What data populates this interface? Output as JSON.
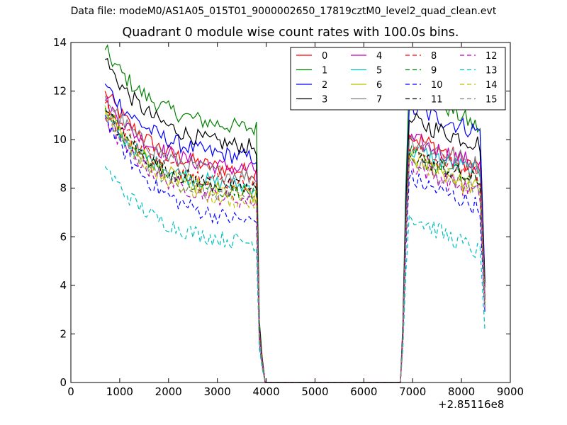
{
  "suptitle": "Data file: modeM0/AS1A05_015T01_9000002650_17819cztM0_level2_quad_clean.evt",
  "chart_data": {
    "type": "line",
    "title": "Quadrant 0 module wise count rates with 100.0s bins.",
    "xlabel": "",
    "ylabel": "",
    "x_offset_label": "+2.85116e8",
    "xlim": [
      0,
      9000
    ],
    "ylim": [
      0,
      14
    ],
    "xticks": [
      0,
      1000,
      2000,
      3000,
      4000,
      5000,
      6000,
      7000,
      8000,
      9000
    ],
    "yticks": [
      0,
      2,
      4,
      6,
      8,
      10,
      12,
      14
    ],
    "grid": false,
    "legend_location": "upper right",
    "legend_columns": 4,
    "segments": [
      {
        "x_start": 700,
        "x_end": 3800,
        "drop_x": [
          3860,
          3920,
          3980
        ],
        "drop_factor": [
          0.25,
          0.1,
          0
        ]
      },
      {
        "rise_x": [
          6750,
          6800,
          6860
        ],
        "rise_factor": [
          0,
          0.2,
          0.65
        ],
        "x_start": 6930,
        "x_end": 8400,
        "drop_x": [
          8480
        ],
        "drop_factor": [
          0.4
        ]
      }
    ],
    "zero_range": [
      3980,
      6750
    ],
    "series": [
      {
        "name": "0",
        "color": "#ff0000",
        "dash": "solid",
        "seg1_start": 12.0,
        "seg1_end": 8.5,
        "seg2_start": 10.2,
        "seg2_end": 8.8
      },
      {
        "name": "1",
        "color": "#008000",
        "dash": "solid",
        "seg1_start": 13.7,
        "seg1_end": 10.3,
        "seg2_start": 12.4,
        "seg2_end": 10.4
      },
      {
        "name": "2",
        "color": "#0000ff",
        "dash": "solid",
        "seg1_start": 12.3,
        "seg1_end": 9.1,
        "seg2_start": 11.3,
        "seg2_end": 10.3
      },
      {
        "name": "3",
        "color": "#000000",
        "dash": "solid",
        "seg1_start": 13.3,
        "seg1_end": 9.5,
        "seg2_start": 10.8,
        "seg2_end": 9.8
      },
      {
        "name": "4",
        "color": "#bf00bf",
        "dash": "solid",
        "seg1_start": 11.6,
        "seg1_end": 8.6,
        "seg2_start": 10.0,
        "seg2_end": 8.9
      },
      {
        "name": "5",
        "color": "#00bfbf",
        "dash": "solid",
        "seg1_start": 11.0,
        "seg1_end": 7.9,
        "seg2_start": 9.6,
        "seg2_end": 8.6
      },
      {
        "name": "6",
        "color": "#bfbf00",
        "dash": "solid",
        "seg1_start": 11.4,
        "seg1_end": 7.5,
        "seg2_start": 9.3,
        "seg2_end": 7.9
      },
      {
        "name": "7",
        "color": "#808080",
        "dash": "solid",
        "seg1_start": 11.8,
        "seg1_end": 8.3,
        "seg2_start": 10.0,
        "seg2_end": 8.9
      },
      {
        "name": "8",
        "color": "#ff0000",
        "dash": "dashed",
        "seg1_start": 11.5,
        "seg1_end": 8.0,
        "seg2_start": 9.6,
        "seg2_end": 8.5
      },
      {
        "name": "9",
        "color": "#008000",
        "dash": "dashed",
        "seg1_start": 11.3,
        "seg1_end": 7.6,
        "seg2_start": 9.4,
        "seg2_end": 8.2
      },
      {
        "name": "10",
        "color": "#0000ff",
        "dash": "dashed",
        "seg1_start": 11.0,
        "seg1_end": 6.4,
        "seg2_start": 8.4,
        "seg2_end": 7.2
      },
      {
        "name": "11",
        "color": "#000000",
        "dash": "dashed",
        "seg1_start": 11.2,
        "seg1_end": 7.8,
        "seg2_start": 9.4,
        "seg2_end": 8.2
      },
      {
        "name": "12",
        "color": "#bf00bf",
        "dash": "dashed",
        "seg1_start": 10.9,
        "seg1_end": 7.3,
        "seg2_start": 9.0,
        "seg2_end": 7.7
      },
      {
        "name": "13",
        "color": "#00bfbf",
        "dash": "dashed",
        "seg1_start": 8.9,
        "seg1_end": 5.6,
        "seg2_start": 6.9,
        "seg2_end": 5.3
      },
      {
        "name": "14",
        "color": "#bfbf00",
        "dash": "dashed",
        "seg1_start": 11.2,
        "seg1_end": 7.2,
        "seg2_start": 9.3,
        "seg2_end": 7.8
      },
      {
        "name": "15",
        "color": "#808080",
        "dash": "dashed",
        "seg1_start": 11.0,
        "seg1_end": 7.4,
        "seg2_start": 9.1,
        "seg2_end": 7.9
      }
    ]
  }
}
